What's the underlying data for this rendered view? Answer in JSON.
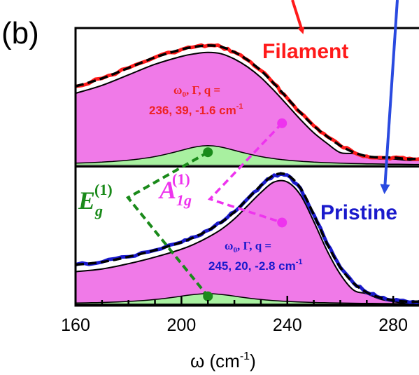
{
  "panel_label": "(b)",
  "xlabel": "ω (cm",
  "xlabel_exp": "-1",
  "xlabel_close": ")",
  "colors": {
    "filament": "#ff1a1a",
    "pristine": "#1a1acc",
    "fill_magenta": "#f07ae8",
    "fill_green": "#a8f0a0",
    "eg_line": "#1a8a1a",
    "a1g_line": "#ee33ee",
    "arrow_red": "#ff1a1a",
    "arrow_blue": "#2a4ae0",
    "fit": "#000000",
    "fano_line": "#000000"
  },
  "labels": {
    "filament": "Filament",
    "pristine": "Pristine",
    "eg_base": "E",
    "eg_sub": "g",
    "eg_sup": "(1)",
    "a1g_base": "A",
    "a1g_sub": "1g",
    "a1g_sup": "(1)",
    "params_top_line1": "ω",
    "params_top_w0_sub": "0",
    "params_top_rest": ", Γ, q =",
    "params_top_line2": "236, 39, -1.6 cm",
    "params_top_exp": "-1",
    "params_bot_line1": "ω",
    "params_bot_w0_sub": "0",
    "params_bot_rest": ", Γ, q =",
    "params_bot_line2": "245, 20, -2.8 cm",
    "params_bot_exp": "-1"
  },
  "chart_data": {
    "type": "line",
    "xlim": [
      160,
      290
    ],
    "xticks": [
      160,
      200,
      240,
      280
    ],
    "xtick_labels": [
      "160",
      "200",
      "240",
      "280"
    ],
    "panels": [
      {
        "name": "Filament",
        "x": [
          160,
          170,
          180,
          190,
          200,
          205,
          210,
          215,
          220,
          225,
          230,
          235,
          240,
          245,
          250,
          255,
          260,
          265,
          270,
          275,
          280,
          285,
          290
        ],
        "y": [
          0.6,
          0.66,
          0.74,
          0.82,
          0.88,
          0.9,
          0.91,
          0.9,
          0.86,
          0.8,
          0.72,
          0.62,
          0.51,
          0.4,
          0.3,
          0.22,
          0.15,
          0.1,
          0.07,
          0.06,
          0.06,
          0.05,
          0.05
        ],
        "fano": {
          "w0": 236,
          "gamma": 39,
          "q": -1.6
        },
        "green_peak": {
          "center": 210,
          "height": 0.15
        },
        "magenta_marker": {
          "x": 238,
          "y": 0.32
        },
        "green_marker": {
          "x": 210,
          "y": 0.1
        }
      },
      {
        "name": "Pristine",
        "x": [
          160,
          170,
          180,
          190,
          200,
          205,
          210,
          215,
          220,
          225,
          230,
          235,
          240,
          245,
          250,
          255,
          260,
          265,
          270,
          275,
          280,
          285,
          290
        ],
        "y": [
          0.3,
          0.32,
          0.36,
          0.41,
          0.47,
          0.51,
          0.56,
          0.62,
          0.7,
          0.8,
          0.9,
          0.98,
          0.98,
          0.88,
          0.68,
          0.46,
          0.28,
          0.16,
          0.09,
          0.05,
          0.03,
          0.02,
          0.02
        ],
        "fano": {
          "w0": 245,
          "gamma": 20,
          "q": -2.8
        },
        "green_peak": {
          "center": 210,
          "height": 0.08
        },
        "magenta_marker": {
          "x": 238,
          "y": 0.62
        },
        "green_marker": {
          "x": 210,
          "y": 0.06
        }
      }
    ]
  }
}
